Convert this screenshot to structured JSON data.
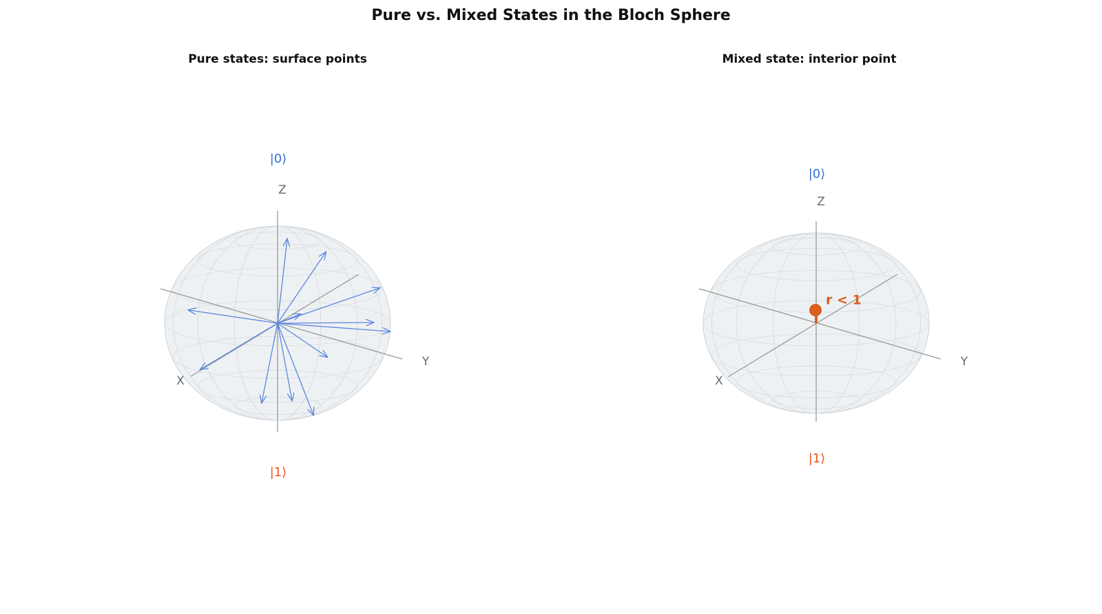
{
  "title": "Pure vs. Mixed States in the Bloch Sphere",
  "panels": [
    {
      "title": "Pure states: surface points",
      "ket0": "|0⟩",
      "ket1": "|1⟩",
      "z_label": "Z",
      "x_label": "X",
      "y_label": "Y"
    },
    {
      "title": "Mixed state: interior point",
      "ket0": "|0⟩",
      "ket1": "|1⟩",
      "z_label": "Z",
      "x_label": "X",
      "y_label": "Y",
      "annotation": "r < 1"
    }
  ]
}
